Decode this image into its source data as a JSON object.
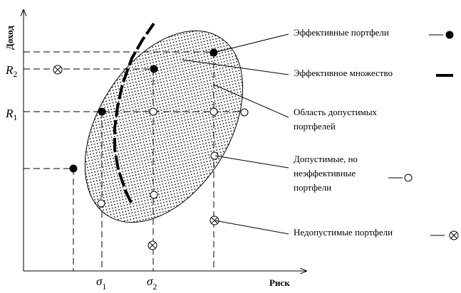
{
  "axes": {
    "y_title": "Доход",
    "x_title": "Риск"
  },
  "ticks": {
    "r2": {
      "main": "R",
      "sub": "2"
    },
    "r1": {
      "main": "R",
      "sub": "1"
    },
    "s1": {
      "main": "σ",
      "sub": "1"
    },
    "s2": {
      "main": "σ",
      "sub": "2"
    }
  },
  "legend": {
    "efficient_portfolios": "Эффективные портфели",
    "efficient_set": "Эффективное множество",
    "feasible_region_line1": "Область допустимых",
    "feasible_region_line2": "портфелей",
    "feasible_inefficient_line1": "Допустимые, но",
    "feasible_inefficient_line2": "неэффективные",
    "feasible_inefficient_line3": "портфели",
    "infeasible_portfolios": "Недопустимые портфели"
  }
}
